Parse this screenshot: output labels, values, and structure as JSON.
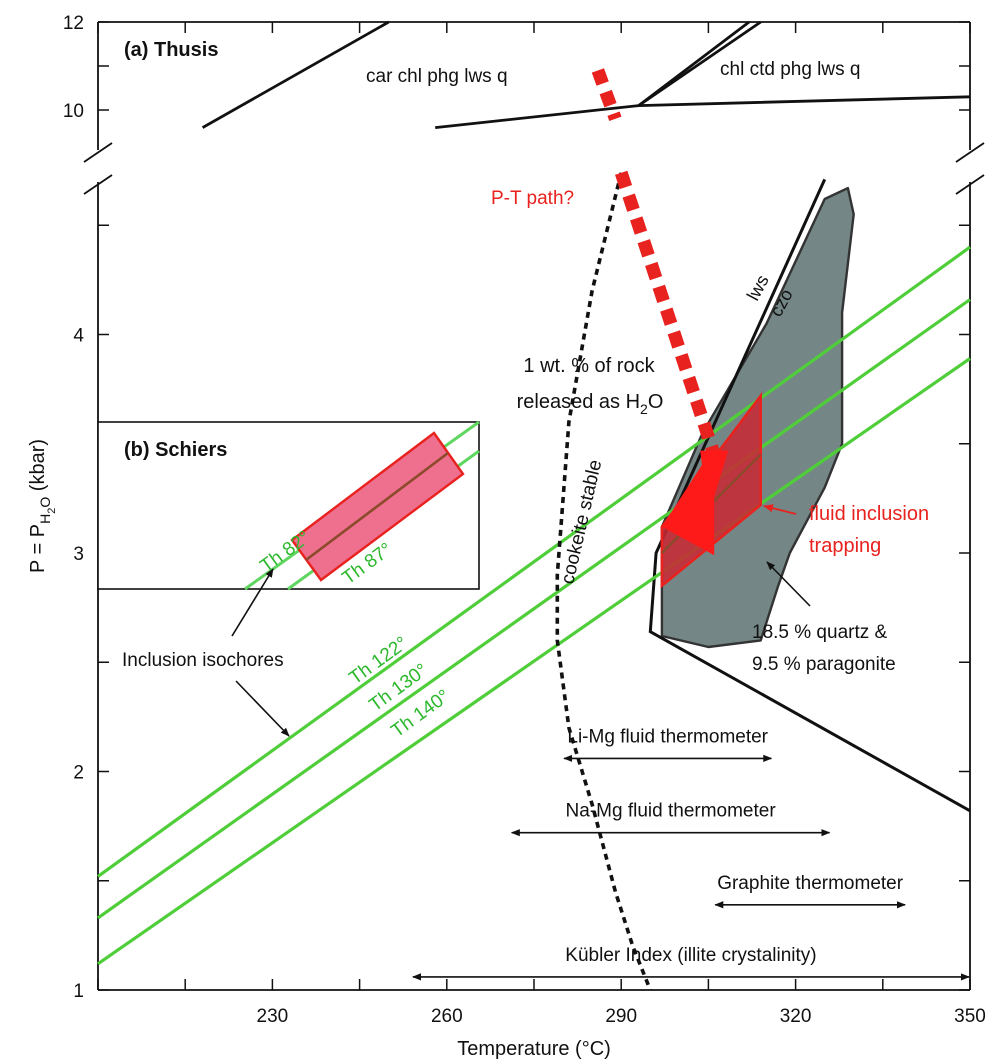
{
  "chart_data": {
    "type": "line",
    "panel_a_label": "(a) Thusis",
    "panel_b_label": "(b) Schiers",
    "xlabel": "Temperature (°C)",
    "ylabel": {
      "main": "P = P",
      "sub1": "H",
      "sub2": "2",
      "sub3": "O",
      "unit": " (kbar)"
    },
    "xlim": [
      200,
      350
    ],
    "ylim": [
      1,
      12
    ],
    "x_ticks": [
      {
        "value": 230,
        "label": "230"
      },
      {
        "value": 260,
        "label": "260"
      },
      {
        "value": 290,
        "label": "290"
      },
      {
        "value": 320,
        "label": "320"
      },
      {
        "value": 350,
        "label": "350"
      }
    ],
    "y_ticks": [
      {
        "value": 1,
        "label": "1"
      },
      {
        "value": 2,
        "label": "2"
      },
      {
        "value": 3,
        "label": "3"
      },
      {
        "value": 4,
        "label": "4"
      },
      {
        "value": 10,
        "label": "10"
      },
      {
        "value": 12,
        "label": "12"
      }
    ],
    "assemblages": {
      "left": "car chl phg lws q",
      "right": "chl ctd phg lws q"
    },
    "reaction_lines": [
      {
        "points": [
          [
            218,
            9.6
          ],
          [
            250,
            12
          ]
        ]
      },
      {
        "points": [
          [
            258,
            9.6
          ],
          [
            293,
            10.1
          ],
          [
            350,
            10.3
          ]
        ]
      },
      {
        "points": [
          [
            293,
            10.1
          ],
          [
            312,
            12
          ]
        ]
      },
      {
        "points": [
          [
            293,
            10.1
          ],
          [
            314,
            12
          ]
        ]
      }
    ],
    "lws_czo_boundary": {
      "label_upper": "lws",
      "label_lower": "czo",
      "points": [
        [
          325,
          4.71
        ],
        [
          296,
          3.0
        ],
        [
          295,
          2.64
        ],
        [
          350,
          1.82
        ]
      ]
    },
    "quartz_paragonite_field": {
      "label_line1": "18.5 % quartz &",
      "label_line2": "9.5 % paragonite",
      "polygon": [
        [
          329,
          4.67
        ],
        [
          330,
          4.55
        ],
        [
          328,
          4.1
        ],
        [
          328,
          3.5
        ],
        [
          325,
          3.3
        ],
        [
          319,
          3.0
        ],
        [
          317,
          2.85
        ],
        [
          314,
          2.6
        ],
        [
          305,
          2.57
        ],
        [
          297,
          2.62
        ],
        [
          297,
          3.12
        ],
        [
          304,
          3.55
        ],
        [
          315,
          4.05
        ],
        [
          325,
          4.62
        ]
      ]
    },
    "isochores": [
      {
        "name": "Th 122°",
        "points": [
          [
            200,
            1.52
          ],
          [
            350,
            4.4
          ]
        ]
      },
      {
        "name": "Th 130°",
        "points": [
          [
            200,
            1.33
          ],
          [
            350,
            4.16
          ]
        ]
      },
      {
        "name": "Th 140°",
        "points": [
          [
            200,
            1.12
          ],
          [
            350,
            3.89
          ]
        ]
      }
    ],
    "isochore_label": "Inclusion isochores",
    "cookeite_boundary": {
      "label": "cookeite stable",
      "points": [
        [
          290,
          4.74
        ],
        [
          285,
          4.2
        ],
        [
          281,
          3.6
        ],
        [
          279,
          2.9
        ],
        [
          279,
          2.6
        ],
        [
          281,
          2.2
        ],
        [
          285,
          1.85
        ],
        [
          289,
          1.45
        ],
        [
          292,
          1.2
        ],
        [
          295,
          1.0
        ]
      ]
    },
    "water_release_label": {
      "line1": "1 wt. % of rock",
      "line2": "released as H",
      "sub": "2",
      "end": "O"
    },
    "pt_path": {
      "label": "P-T path?",
      "upper_segment": [
        [
          286,
          10.9
        ],
        [
          289,
          9.8
        ]
      ],
      "lower_segment": [
        [
          290,
          4.74
        ],
        [
          306,
          3.45
        ]
      ],
      "arrow_tip": [
        305,
        3.17
      ]
    },
    "fluid_inclusion_box": {
      "label_line1": "fluid inclusion",
      "label_line2": "trapping",
      "polygon": [
        [
          297,
          2.85
        ],
        [
          314,
          3.22
        ],
        [
          314,
          3.72
        ],
        [
          297,
          3.12
        ]
      ],
      "triangle": [
        [
          297,
          3.12
        ],
        [
          306,
          3.49
        ],
        [
          306,
          2.99
        ]
      ],
      "centerline": [
        [
          297,
          3.0
        ],
        [
          314,
          3.45
        ]
      ]
    },
    "thermometers": [
      {
        "name": "Li-Mg fluid thermometer",
        "range": [
          280,
          316
        ],
        "y": 2.06
      },
      {
        "name": "Na-Mg fluid thermometer",
        "range": [
          271,
          326
        ],
        "y": 1.72
      },
      {
        "name": "Graphite thermometer",
        "range": [
          306,
          339
        ],
        "y": 1.39
      },
      {
        "name": "Kübler Index (illite crystalinity)",
        "range": [
          254,
          350
        ],
        "y": 1.06
      }
    ],
    "inset_isochores": [
      {
        "name": "Th 82°"
      },
      {
        "name": "Th 87°"
      }
    ]
  }
}
